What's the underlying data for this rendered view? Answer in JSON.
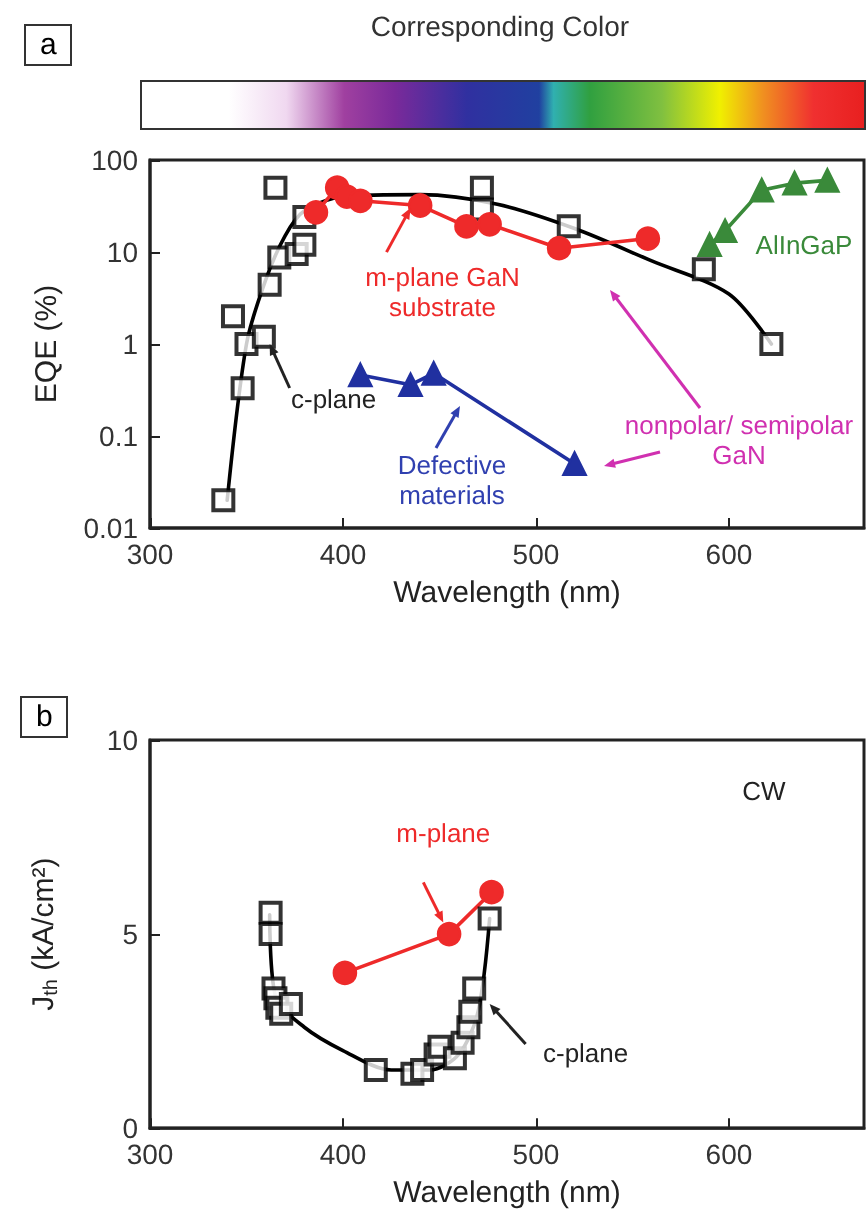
{
  "chart_data": [
    {
      "type": "line",
      "xlabel": "Wavelength (nm)",
      "ylabel": "EQE (%)",
      "log": "y",
      "xlim": [
        300,
        670
      ],
      "xticks": [
        300,
        400,
        500,
        600
      ],
      "ylim": [
        0.01,
        100
      ],
      "yticks": [
        0.01,
        0.1,
        1,
        10,
        100
      ],
      "annotations": [
        "a",
        "Corresponding Color",
        {
          "text": "m-plane GaN substrate",
          "x": 435,
          "y": 30
        },
        {
          "text": "c-plane",
          "x": 362,
          "y": 1
        },
        "Defective materials",
        "nonpolar/ semipolar GaN",
        "AlInGaP"
      ],
      "series": [
        {
          "type": "scatter",
          "marker": "square",
          "color": "#000000",
          "x": [
            338,
            343,
            348,
            350,
            359,
            362,
            365,
            367,
            376,
            380,
            380,
            472,
            472,
            517,
            587,
            622
          ],
          "values": [
            0.02,
            2,
            0.33,
            1,
            1.2,
            4.4,
            50,
            8.7,
            9.5,
            12,
            24,
            50,
            29,
            19,
            6.5,
            1
          ]
        },
        {
          "type": "line",
          "marker": "none",
          "color": "#000000",
          "x": [
            340,
            350,
            360,
            370,
            380,
            400,
            440,
            480,
            520,
            560,
            600,
            622
          ],
          "values": [
            0.02,
            1,
            5,
            15,
            28,
            40,
            42,
            33,
            18,
            8,
            3.5,
            1
          ]
        },
        {
          "type": "line",
          "marker": "circle",
          "color": "#ee2a2a",
          "x": [
            386,
            397,
            402,
            409,
            440,
            464,
            476,
            512,
            558
          ],
          "values": [
            27,
            50,
            40,
            36,
            32,
            19,
            20,
            11,
            14
          ]
        },
        {
          "type": "line",
          "marker": "triangle",
          "color": "#2030a0",
          "x": [
            409,
            435,
            447,
            520
          ],
          "values": [
            0.46,
            0.36,
            0.48,
            0.05
          ]
        },
        {
          "type": "line",
          "marker": "triangle",
          "color": "#3a8a3a",
          "x": [
            590,
            598,
            617,
            634,
            651
          ],
          "values": [
            12,
            17,
            47,
            56,
            60
          ]
        }
      ]
    },
    {
      "type": "line",
      "xlabel": "Wavelength (nm)",
      "ylabel": "J$_{th}$ (kA/cm²)",
      "xlim": [
        300,
        670
      ],
      "xticks": [
        300,
        400,
        500,
        600
      ],
      "ylim": [
        0,
        10
      ],
      "yticks": [
        0,
        5,
        10
      ],
      "annotations": [
        "b",
        "CW",
        {
          "text": "m-plane",
          "x": 452,
          "y": 5.3
        },
        {
          "text": "c-plane",
          "x": 476,
          "y": 3.2
        }
      ],
      "series": [
        {
          "type": "scatter",
          "marker": "square",
          "color": "#000000",
          "x": [
            362.5,
            362.5,
            364,
            365,
            366,
            368,
            373,
            417,
            436,
            441,
            448,
            450,
            458,
            462,
            465,
            466,
            468,
            476
          ],
          "values": [
            5.55,
            5,
            3.6,
            3.35,
            3.1,
            2.95,
            3.2,
            1.5,
            1.4,
            1.5,
            1.9,
            2.1,
            1.8,
            2.2,
            2.6,
            3,
            3.6,
            5.4
          ]
        },
        {
          "type": "line",
          "marker": "none",
          "color": "#000000",
          "x": [
            362,
            365,
            380,
            400,
            425,
            445,
            460,
            470,
            476
          ],
          "values": [
            5.5,
            3.4,
            2.6,
            2,
            1.5,
            1.5,
            1.9,
            3,
            5.4
          ]
        },
        {
          "type": "line",
          "marker": "circle",
          "color": "#ee2a2a",
          "x": [
            401,
            455,
            477
          ],
          "values": [
            4,
            5,
            6.08
          ]
        }
      ]
    }
  ]
}
